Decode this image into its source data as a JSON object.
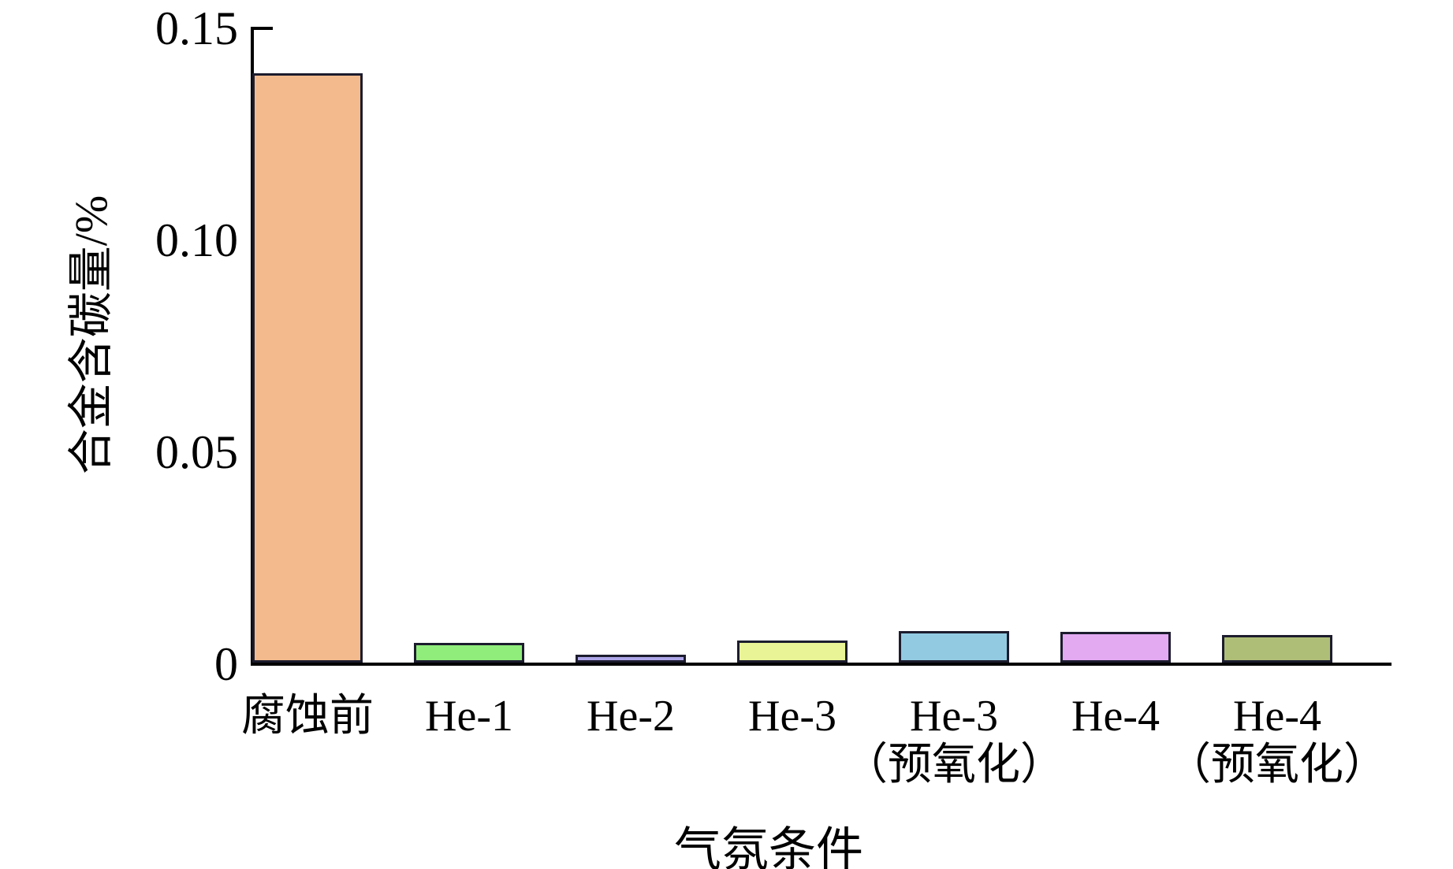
{
  "chart_data": {
    "type": "bar",
    "title": "",
    "xlabel": "气氛条件",
    "ylabel": "合金含碳量/%",
    "ylim": [
      0,
      0.15
    ],
    "yticks": [
      0,
      0.05,
      0.1,
      0.15
    ],
    "ytick_labels": [
      "0",
      "0.05",
      "0.10",
      "0.15"
    ],
    "categories": [
      "腐蚀前",
      "He-1",
      "He-2",
      "He-3",
      "He-3（预氧化）",
      "He-4",
      "He-4（预氧化）"
    ],
    "category_lines": [
      [
        "腐蚀前"
      ],
      [
        "He-1"
      ],
      [
        "He-2"
      ],
      [
        "He-3"
      ],
      [
        "He-3",
        "（预氧化）"
      ],
      [
        "He-4"
      ],
      [
        "He-4",
        "（预氧化）"
      ]
    ],
    "values": [
      0.139,
      0.0046,
      0.0019,
      0.0052,
      0.0074,
      0.0072,
      0.0065
    ],
    "bar_colors": [
      "#F3BB8D",
      "#90EC7B",
      "#AEA6E9",
      "#E8F495",
      "#92CBE1",
      "#E3AAF2",
      "#AFBE77"
    ],
    "bar_border_color": "#1c1c2e",
    "axis_color": "#000000",
    "grid": false,
    "legend": null
  }
}
